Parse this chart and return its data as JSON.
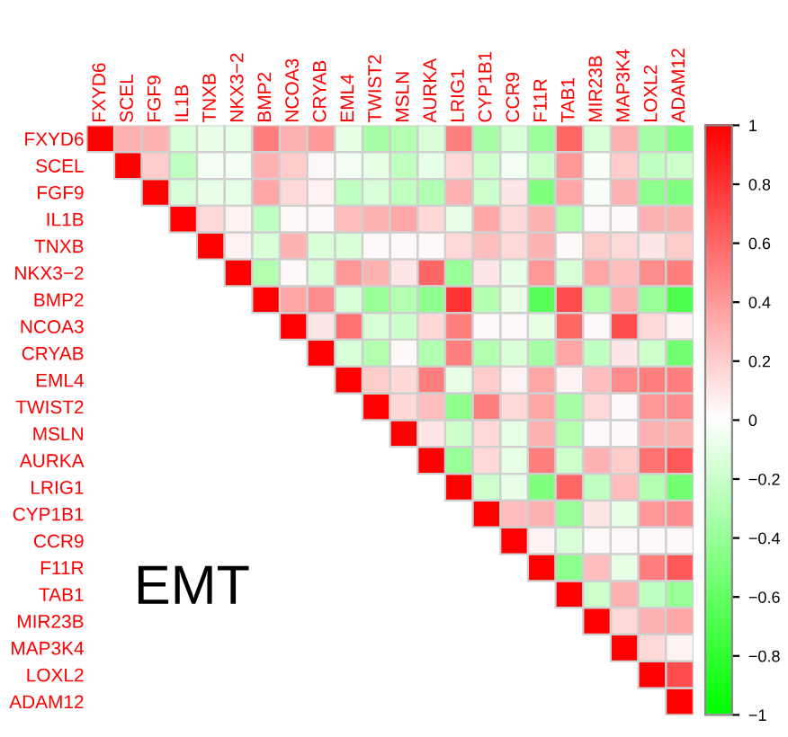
{
  "chart_data": {
    "type": "heatmap",
    "title": "EMT",
    "categories": [
      "FXYD6",
      "SCEL",
      "FGF9",
      "IL1B",
      "TNXB",
      "NKX3−2",
      "BMP2",
      "NCOA3",
      "CRYAB",
      "EML4",
      "TWIST2",
      "MSLN",
      "AURKA",
      "LRIG1",
      "CYP1B1",
      "CCR9",
      "F11R",
      "TAB1",
      "MIR23B",
      "MAP3K4",
      "LOXL2",
      "ADAM12"
    ],
    "y_categories": [
      "FXYD6",
      "SCEL",
      "FGF9",
      "IL1B",
      "TNXB",
      "NKX3−2",
      "BMP2",
      "NCOA3",
      "CRYAB",
      "EML4",
      "TWIST2",
      "MSLN",
      "AURKA",
      "LRIG1",
      "CYP1B1",
      "CCR9",
      "F11R",
      "TAB1",
      "MIR23B",
      "MAP3K4",
      "LOXL2",
      "ADAM12"
    ],
    "cells": [
      [
        1,
        0.3,
        0.3,
        -0.15,
        -0.1,
        -0.1,
        0.5,
        0.3,
        0.4,
        -0.1,
        -0.35,
        -0.3,
        -0.15,
        0.5,
        -0.35,
        -0.15,
        -0.4,
        0.6,
        -0.15,
        0.3,
        -0.35,
        -0.5
      ],
      [
        null,
        1,
        0.2,
        -0.25,
        -0.05,
        -0.05,
        0.3,
        0.2,
        0.03,
        -0.05,
        -0.1,
        -0.25,
        -0.1,
        0.15,
        -0.2,
        -0.05,
        -0.2,
        0.4,
        -0.03,
        0.2,
        -0.25,
        -0.2
      ],
      [
        null,
        null,
        1,
        -0.15,
        -0.1,
        -0.1,
        0.35,
        0.15,
        0.05,
        -0.25,
        -0.15,
        -0.25,
        -0.3,
        0.3,
        -0.2,
        0.1,
        -0.5,
        0.35,
        -0.03,
        0.3,
        -0.45,
        -0.5
      ],
      [
        null,
        null,
        null,
        1,
        0.15,
        0.05,
        -0.25,
        0.03,
        0.03,
        0.25,
        0.3,
        0.35,
        0.15,
        -0.1,
        0.35,
        0.15,
        0.3,
        -0.3,
        0.03,
        0.03,
        0.3,
        0.3
      ],
      [
        null,
        null,
        null,
        null,
        1,
        0.05,
        -0.15,
        0.3,
        -0.15,
        -0.15,
        0.03,
        0.03,
        0.03,
        0.15,
        0.25,
        0.15,
        0.3,
        0.03,
        0.2,
        0.15,
        0.1,
        0.2
      ],
      [
        null,
        null,
        null,
        null,
        null,
        1,
        -0.3,
        0.03,
        -0.15,
        0.4,
        0.3,
        0.1,
        0.6,
        -0.4,
        0.1,
        -0.1,
        0.4,
        -0.15,
        0.35,
        0.25,
        0.45,
        0.5
      ],
      [
        null,
        null,
        null,
        null,
        null,
        null,
        1,
        0.35,
        0.45,
        -0.15,
        -0.4,
        -0.3,
        -0.45,
        0.8,
        -0.3,
        -0.1,
        -0.65,
        0.7,
        -0.3,
        0.3,
        -0.4,
        -0.7
      ],
      [
        null,
        null,
        null,
        null,
        null,
        null,
        null,
        1,
        0.1,
        0.55,
        -0.15,
        -0.2,
        0.15,
        0.5,
        0.03,
        0.03,
        -0.1,
        0.6,
        0.03,
        0.7,
        0.15,
        0.05
      ],
      [
        null,
        null,
        null,
        null,
        null,
        null,
        null,
        null,
        1,
        -0.15,
        -0.3,
        0.03,
        -0.3,
        0.5,
        -0.3,
        -0.15,
        -0.35,
        0.35,
        -0.25,
        0.1,
        -0.2,
        -0.55
      ],
      [
        null,
        null,
        null,
        null,
        null,
        null,
        null,
        null,
        null,
        1,
        0.2,
        0.15,
        0.5,
        -0.1,
        0.2,
        0.05,
        0.35,
        0.05,
        0.25,
        0.45,
        0.5,
        0.5
      ],
      [
        null,
        null,
        null,
        null,
        null,
        null,
        null,
        null,
        null,
        null,
        1,
        0.15,
        0.25,
        -0.45,
        0.5,
        0.15,
        0.35,
        -0.35,
        0.15,
        0.03,
        0.4,
        0.45
      ],
      [
        null,
        null,
        null,
        null,
        null,
        null,
        null,
        null,
        null,
        null,
        null,
        1,
        0.1,
        -0.2,
        0.15,
        -0.1,
        0.3,
        -0.3,
        0.03,
        0.03,
        0.3,
        0.3
      ],
      [
        null,
        null,
        null,
        null,
        null,
        null,
        null,
        null,
        null,
        null,
        null,
        null,
        1,
        -0.4,
        0.15,
        -0.1,
        0.5,
        -0.2,
        0.3,
        0.2,
        0.55,
        0.65
      ],
      [
        null,
        null,
        null,
        null,
        null,
        null,
        null,
        null,
        null,
        null,
        null,
        null,
        null,
        1,
        -0.2,
        -0.1,
        -0.5,
        0.6,
        -0.25,
        0.25,
        -0.3,
        -0.55
      ],
      [
        null,
        null,
        null,
        null,
        null,
        null,
        null,
        null,
        null,
        null,
        null,
        null,
        null,
        null,
        1,
        0.25,
        0.3,
        -0.4,
        0.1,
        -0.1,
        0.4,
        0.45
      ],
      [
        null,
        null,
        null,
        null,
        null,
        null,
        null,
        null,
        null,
        null,
        null,
        null,
        null,
        null,
        null,
        1,
        0.05,
        -0.15,
        0.03,
        0.03,
        0.03,
        0.03
      ],
      [
        null,
        null,
        null,
        null,
        null,
        null,
        null,
        null,
        null,
        null,
        null,
        null,
        null,
        null,
        null,
        null,
        1,
        -0.45,
        0.25,
        -0.1,
        0.5,
        0.65
      ],
      [
        null,
        null,
        null,
        null,
        null,
        null,
        null,
        null,
        null,
        null,
        null,
        null,
        null,
        null,
        null,
        null,
        null,
        1,
        -0.2,
        0.3,
        -0.25,
        -0.4
      ],
      [
        null,
        null,
        null,
        null,
        null,
        null,
        null,
        null,
        null,
        null,
        null,
        null,
        null,
        null,
        null,
        null,
        null,
        null,
        1,
        0.15,
        0.3,
        0.35
      ],
      [
        null,
        null,
        null,
        null,
        null,
        null,
        null,
        null,
        null,
        null,
        null,
        null,
        null,
        null,
        null,
        null,
        null,
        null,
        null,
        1,
        0.15,
        0.05
      ],
      [
        null,
        null,
        null,
        null,
        null,
        null,
        null,
        null,
        null,
        null,
        null,
        null,
        null,
        null,
        null,
        null,
        null,
        null,
        null,
        null,
        1,
        0.7
      ],
      [
        null,
        null,
        null,
        null,
        null,
        null,
        null,
        null,
        null,
        null,
        null,
        null,
        null,
        null,
        null,
        null,
        null,
        null,
        null,
        null,
        null,
        1
      ]
    ],
    "clim": [
      -1,
      1
    ],
    "cticks": [
      1,
      0.8,
      0.6,
      0.4,
      0.2,
      0,
      {
        "value": -0.2,
        "label": "−0.2"
      },
      {
        "value": -0.4,
        "label": "−0.4"
      },
      {
        "value": -0.6,
        "label": "−0.6"
      },
      {
        "value": -0.8,
        "label": "−0.8"
      },
      {
        "value": -1,
        "label": "−1"
      }
    ]
  }
}
